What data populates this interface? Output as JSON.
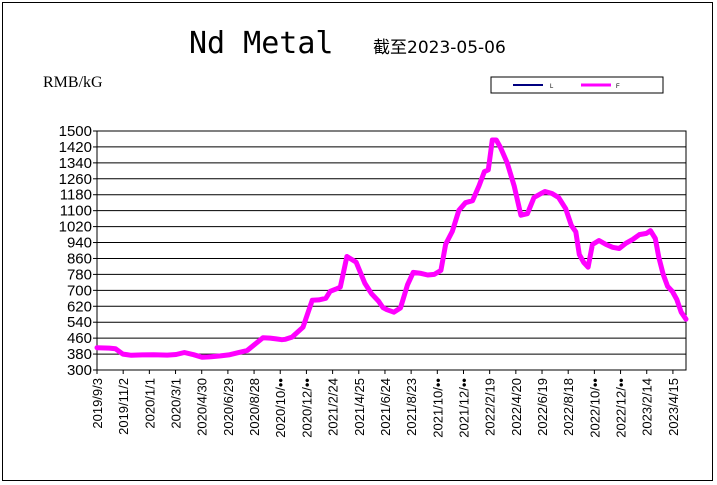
{
  "chart_data": {
    "type": "line",
    "title": "Nd Metal",
    "subtitle": "截至2023-05-06",
    "ylabel": "RMB/kG",
    "ylim": [
      300,
      1500
    ],
    "yticks": [
      300,
      380,
      460,
      540,
      620,
      700,
      780,
      860,
      940,
      1020,
      1100,
      1180,
      1260,
      1340,
      1420,
      1500
    ],
    "xlim": [
      "2019-09-03",
      "2023-05-06"
    ],
    "xtick_labels": [
      "2019/9/3",
      "2019/11/2",
      "2020/1/1",
      "2020/3/1",
      "2020/4/30",
      "2020/6/29",
      "2020/8/28",
      "2020/10/••",
      "2020/12/••",
      "2021/2/24",
      "2021/4/25",
      "2021/6/24",
      "2021/8/23",
      "2021/10/••",
      "2021/12/••",
      "2022/2/19",
      "2022/4/20",
      "2022/6/19",
      "2022/8/18",
      "2022/10/••",
      "2022/12/••",
      "2023/2/14",
      "2023/4/15"
    ],
    "grid": true,
    "legend": {
      "placement": "top-right"
    },
    "series": [
      {
        "name": "L",
        "color": "#000080",
        "x": [
          "2019-09-03",
          "2019-10-01",
          "2019-10-15",
          "2019-11-01",
          "2019-11-20",
          "2019-12-15",
          "2020-01-10",
          "2020-02-10",
          "2020-03-01",
          "2020-03-20",
          "2020-04-10",
          "2020-04-30",
          "2020-05-20",
          "2020-06-10",
          "2020-06-29",
          "2020-07-20",
          "2020-08-10",
          "2020-08-28",
          "2020-09-15",
          "2020-10-01",
          "2020-10-15",
          "2020-10-28",
          "2020-11-05",
          "2020-11-20",
          "2020-12-15",
          "2021-01-05",
          "2021-01-20",
          "2021-02-05",
          "2021-02-15",
          "2021-02-28",
          "2021-03-10",
          "2021-03-25",
          "2021-04-15",
          "2021-05-05",
          "2021-05-20",
          "2021-06-05",
          "2021-06-15",
          "2021-06-24",
          "2021-07-10",
          "2021-07-25",
          "2021-08-10",
          "2021-08-23",
          "2021-09-10",
          "2021-09-25",
          "2021-10-10",
          "2021-10-25",
          "2021-11-05",
          "2021-11-20",
          "2021-12-05",
          "2021-12-20",
          "2022-01-05",
          "2022-01-20",
          "2022-02-01",
          "2022-02-10",
          "2022-02-19",
          "2022-02-28",
          "2022-03-10",
          "2022-03-25",
          "2022-04-10",
          "2022-04-25",
          "2022-05-10",
          "2022-05-25",
          "2022-06-10",
          "2022-06-19",
          "2022-07-05",
          "2022-07-20",
          "2022-08-05",
          "2022-08-18",
          "2022-08-28",
          "2022-09-05",
          "2022-09-15",
          "2022-09-25",
          "2022-10-05",
          "2022-10-20",
          "2022-11-05",
          "2022-11-20",
          "2022-12-05",
          "2022-12-20",
          "2023-01-05",
          "2023-01-20",
          "2023-02-05",
          "2023-02-14",
          "2023-02-25",
          "2023-03-05",
          "2023-03-15",
          "2023-03-25",
          "2023-04-05",
          "2023-04-15",
          "2023-04-25",
          "2023-05-06"
        ],
        "values": [
          408,
          405,
          402,
          376,
          370,
          373,
          374,
          372,
          375,
          385,
          374,
          360,
          364,
          368,
          373,
          383,
          395,
          425,
          457,
          455,
          452,
          448,
          450,
          460,
          508,
          645,
          648,
          655,
          690,
          702,
          712,
          865,
          835,
          730,
          678,
          640,
          608,
          598,
          585,
          605,
          720,
          785,
          780,
          772,
          775,
          795,
          925,
          990,
          1095,
          1135,
          1145,
          1220,
          1290,
          1300,
          1450,
          1450,
          1410,
          1335,
          1215,
          1070,
          1080,
          1160,
          1180,
          1190,
          1180,
          1160,
          1105,
          1020,
          988,
          875,
          835,
          810,
          925,
          945,
          925,
          910,
          905,
          930,
          950,
          975,
          980,
          995,
          955,
          860,
          775,
          715,
          688,
          648,
          585,
          548
        ]
      },
      {
        "name": "F",
        "color": "#ff00ff",
        "x": [
          "2019-09-03",
          "2019-10-01",
          "2019-10-15",
          "2019-11-01",
          "2019-11-20",
          "2019-12-15",
          "2020-01-10",
          "2020-02-10",
          "2020-03-01",
          "2020-03-20",
          "2020-04-10",
          "2020-04-30",
          "2020-05-20",
          "2020-06-10",
          "2020-06-29",
          "2020-07-20",
          "2020-08-10",
          "2020-08-28",
          "2020-09-15",
          "2020-10-01",
          "2020-10-15",
          "2020-10-28",
          "2020-11-05",
          "2020-11-20",
          "2020-12-15",
          "2021-01-05",
          "2021-01-20",
          "2021-02-05",
          "2021-02-15",
          "2021-02-28",
          "2021-03-10",
          "2021-03-25",
          "2021-04-15",
          "2021-05-05",
          "2021-05-20",
          "2021-06-05",
          "2021-06-15",
          "2021-06-24",
          "2021-07-10",
          "2021-07-25",
          "2021-08-10",
          "2021-08-23",
          "2021-09-10",
          "2021-09-25",
          "2021-10-10",
          "2021-10-25",
          "2021-11-05",
          "2021-11-20",
          "2021-12-05",
          "2021-12-20",
          "2022-01-05",
          "2022-01-20",
          "2022-02-01",
          "2022-02-10",
          "2022-02-19",
          "2022-02-28",
          "2022-03-10",
          "2022-03-25",
          "2022-04-10",
          "2022-04-25",
          "2022-05-10",
          "2022-05-25",
          "2022-06-10",
          "2022-06-19",
          "2022-07-05",
          "2022-07-20",
          "2022-08-05",
          "2022-08-18",
          "2022-08-28",
          "2022-09-05",
          "2022-09-15",
          "2022-09-25",
          "2022-10-05",
          "2022-10-20",
          "2022-11-05",
          "2022-11-20",
          "2022-12-05",
          "2022-12-20",
          "2023-01-05",
          "2023-01-20",
          "2023-02-05",
          "2023-02-14",
          "2023-02-25",
          "2023-03-05",
          "2023-03-15",
          "2023-03-25",
          "2023-04-05",
          "2023-04-15",
          "2023-04-25",
          "2023-05-06"
        ],
        "values": [
          412,
          410,
          407,
          380,
          374,
          376,
          377,
          375,
          378,
          388,
          377,
          364,
          367,
          371,
          376,
          387,
          398,
          430,
          462,
          460,
          456,
          452,
          454,
          465,
          515,
          650,
          652,
          660,
          695,
          706,
          716,
          870,
          842,
          735,
          683,
          646,
          614,
          603,
          590,
          612,
          728,
          790,
          785,
          777,
          780,
          800,
          932,
          996,
          1102,
          1140,
          1150,
          1226,
          1296,
          1305,
          1455,
          1455,
          1416,
          1340,
          1222,
          1077,
          1085,
          1166,
          1186,
          1196,
          1186,
          1166,
          1110,
          1025,
          994,
          880,
          840,
          816,
          930,
          950,
          930,
          916,
          910,
          936,
          956,
          980,
          986,
          1000,
          960,
          866,
          780,
          720,
          694,
          654,
          590,
          555
        ]
      }
    ]
  }
}
